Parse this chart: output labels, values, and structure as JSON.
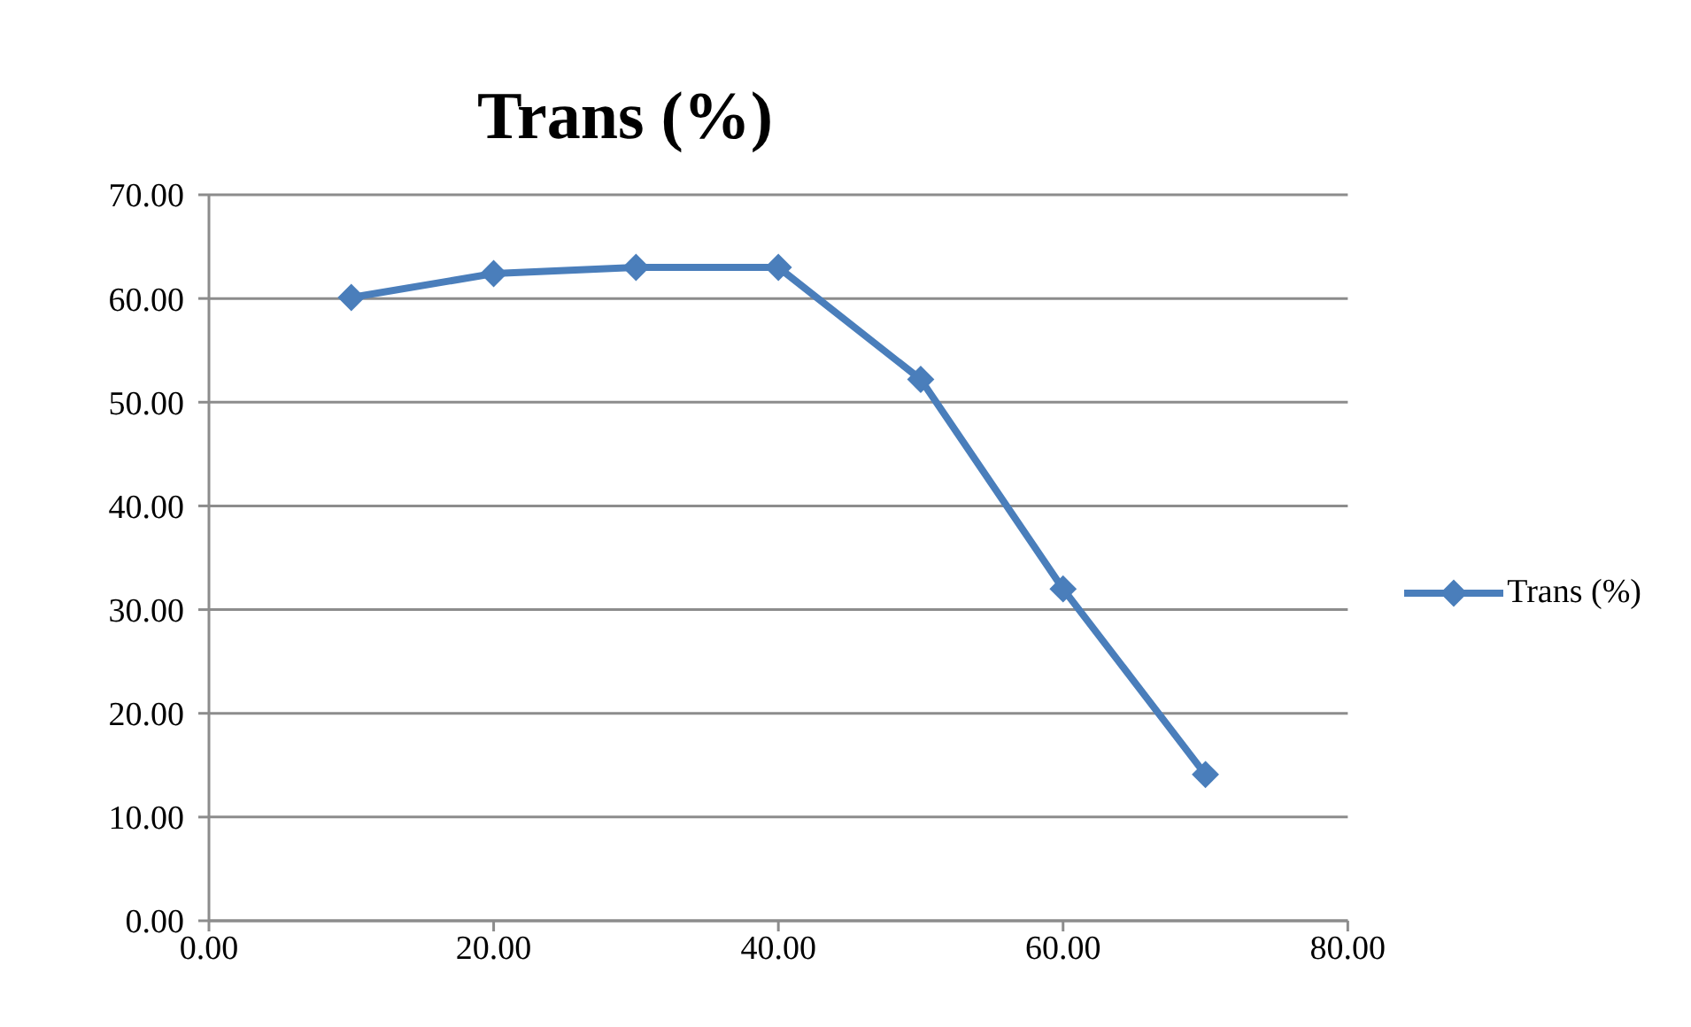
{
  "chart_data": {
    "type": "line",
    "title": "Trans (%)",
    "x": [
      10,
      20,
      30,
      40,
      50,
      60,
      70
    ],
    "series": [
      {
        "name": "Trans (%)",
        "color": "#4a7ebb",
        "values": [
          60.1,
          62.4,
          63.0,
          63.0,
          52.2,
          32.0,
          14.1
        ]
      }
    ],
    "xlim": [
      0,
      80
    ],
    "xticks": [
      {
        "value": 0,
        "label": "0.00"
      },
      {
        "value": 20,
        "label": "20.00"
      },
      {
        "value": 40,
        "label": "40.00"
      },
      {
        "value": 60,
        "label": "60.00"
      },
      {
        "value": 80,
        "label": "80.00"
      }
    ],
    "ylim": [
      0,
      70
    ],
    "yticks": [
      {
        "value": 0,
        "label": "0.00"
      },
      {
        "value": 10,
        "label": "10.00"
      },
      {
        "value": 20,
        "label": "20.00"
      },
      {
        "value": 30,
        "label": "30.00"
      },
      {
        "value": 40,
        "label": "40.00"
      },
      {
        "value": 50,
        "label": "50.00"
      },
      {
        "value": 60,
        "label": "60.00"
      },
      {
        "value": 70,
        "label": "70.00"
      }
    ],
    "grid": "y",
    "legend": "right",
    "marker": "diamond",
    "line_style": "solid"
  }
}
